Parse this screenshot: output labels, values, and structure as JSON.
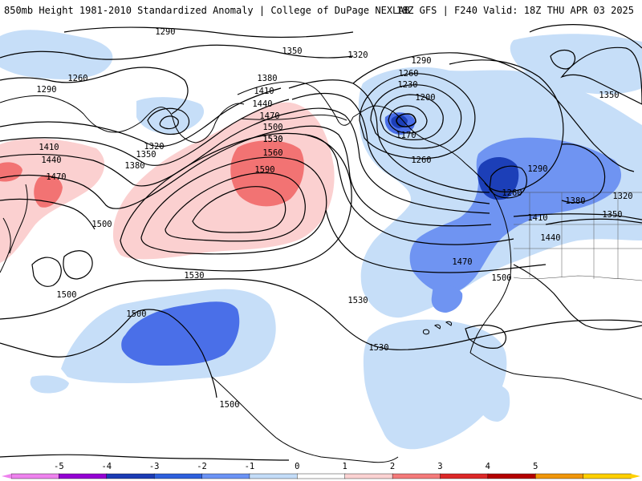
{
  "header": {
    "title": "850mb Height 1981-2010 Standardized Anomaly | College of DuPage NEXLAB",
    "run_info": "18Z GFS | F240 Valid: 18Z THU APR 03 2025"
  },
  "legend": {
    "ticks": [
      "-5",
      "-4",
      "-3",
      "-2",
      "-1",
      "0",
      "1",
      "2",
      "3",
      "4",
      "5"
    ],
    "colors": [
      "#ee82ee",
      "#9400d3",
      "#1b3bb4",
      "#2d5fdc",
      "#6b93f5",
      "#c3dcf8",
      "#ffffff",
      "#fbd2d2",
      "#f47a7a",
      "#dc2828",
      "#b40000",
      "#f0960a",
      "#ffd000"
    ]
  },
  "anomaly_colors": {
    "light_blue": "#c6def8",
    "medium_blue": "#6f94f2",
    "blue": "#4a6fe8",
    "dark_blue": "#1c3fb8",
    "light_red": "#fbd0d0",
    "medium_red": "#f27373"
  },
  "contour_labels": [
    {
      "text": "1290",
      "id": "c1290a"
    },
    {
      "text": "1260",
      "id": "c1260a"
    },
    {
      "text": "1290",
      "id": "c1290b"
    },
    {
      "text": "1350",
      "id": "c1350a"
    },
    {
      "text": "1320",
      "id": "c1320a"
    },
    {
      "text": "1380",
      "id": "c1380a"
    },
    {
      "text": "1410",
      "id": "c1410a"
    },
    {
      "text": "1440",
      "id": "c1440a"
    },
    {
      "text": "1470",
      "id": "c1470a"
    },
    {
      "text": "1500",
      "id": "c1500a"
    },
    {
      "text": "1530",
      "id": "c1530a"
    },
    {
      "text": "1560",
      "id": "c1560a"
    },
    {
      "text": "1590",
      "id": "c1590a"
    },
    {
      "text": "1320",
      "id": "c1320b"
    },
    {
      "text": "1350",
      "id": "c1350b"
    },
    {
      "text": "1380",
      "id": "c1380b"
    },
    {
      "text": "1410",
      "id": "c1410b"
    },
    {
      "text": "1440",
      "id": "c1440b"
    },
    {
      "text": "1470",
      "id": "c1470b"
    },
    {
      "text": "1500",
      "id": "c1500b"
    },
    {
      "text": "1290",
      "id": "c1290c"
    },
    {
      "text": "1260",
      "id": "c1260b"
    },
    {
      "text": "1230",
      "id": "c1230a"
    },
    {
      "text": "1200",
      "id": "c1200a"
    },
    {
      "text": "1170",
      "id": "c1170a"
    },
    {
      "text": "1260",
      "id": "c1260c"
    },
    {
      "text": "1290",
      "id": "c1290d"
    },
    {
      "text": "1260",
      "id": "c1260d"
    },
    {
      "text": "1380",
      "id": "c1380c"
    },
    {
      "text": "1320",
      "id": "c1320c"
    },
    {
      "text": "1350",
      "id": "c1350c"
    },
    {
      "text": "1410",
      "id": "c1410c"
    },
    {
      "text": "1440",
      "id": "c1440c"
    },
    {
      "text": "1470",
      "id": "c1470c"
    },
    {
      "text": "1500",
      "id": "c1500c"
    },
    {
      "text": "1350",
      "id": "c1350d"
    },
    {
      "text": "1530",
      "id": "c1530a"
    },
    {
      "text": "1500",
      "id": "c1500d"
    },
    {
      "text": "1500",
      "id": "c1500e"
    },
    {
      "text": "1530",
      "id": "c1530b"
    },
    {
      "text": "1530",
      "id": "c1530c"
    },
    {
      "text": "1530",
      "id": "c1530d"
    },
    {
      "text": "1500",
      "id": "c1500f"
    }
  ]
}
